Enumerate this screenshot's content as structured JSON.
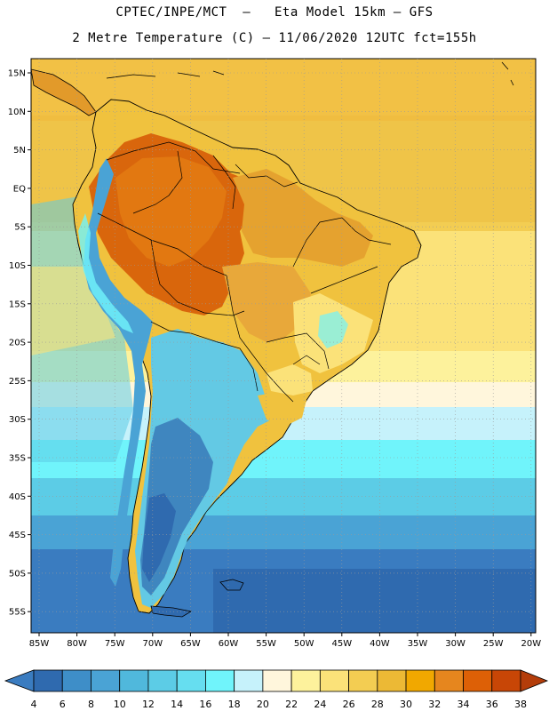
{
  "title": {
    "line1": "CPTEC/INPE/MCT  –   Eta Model 15km – GFS",
    "line2": "2 Metre Temperature (C) – 11/06/2020 12UTC fct=155h"
  },
  "map": {
    "lat_labels": [
      "15N",
      "10N",
      "5N",
      "EQ",
      "5S",
      "10S",
      "15S",
      "20S",
      "25S",
      "30S",
      "35S",
      "40S",
      "45S",
      "50S",
      "55S"
    ],
    "lon_labels": [
      "85W",
      "80W",
      "75W",
      "70W",
      "65W",
      "60W",
      "55W",
      "50W",
      "45W",
      "40W",
      "35W",
      "30W",
      "25W",
      "20W"
    ]
  },
  "colorbar": {
    "labels": [
      "4",
      "6",
      "8",
      "10",
      "12",
      "14",
      "16",
      "18",
      "20",
      "22",
      "24",
      "26",
      "28",
      "30",
      "32",
      "34",
      "36",
      "38"
    ],
    "colors": [
      "#3a7cc0",
      "#2f6aaf",
      "#3e8ec8",
      "#4aa3d5",
      "#50b8dc",
      "#5ccce6",
      "#66def0",
      "#70f4fb",
      "#c6f2fb",
      "#fff6dc",
      "#fdf29c",
      "#fbe279",
      "#f3cd52",
      "#ecb935",
      "#f1a800",
      "#e6861e",
      "#dd6006",
      "#c84606",
      "#b43d0a"
    ]
  },
  "colors": {
    "land_hot": "#d9660c",
    "land_warm": "#e5a22f",
    "land_mild": "#f0c23e",
    "land_cool": "#63c9e4",
    "land_cold": "#3f86bf",
    "ocean_tropical": "#f3cd52",
    "ocean_subtropical": "#fdf29c",
    "ocean_mid": "#66def0",
    "ocean_south": "#2f6aaf"
  }
}
